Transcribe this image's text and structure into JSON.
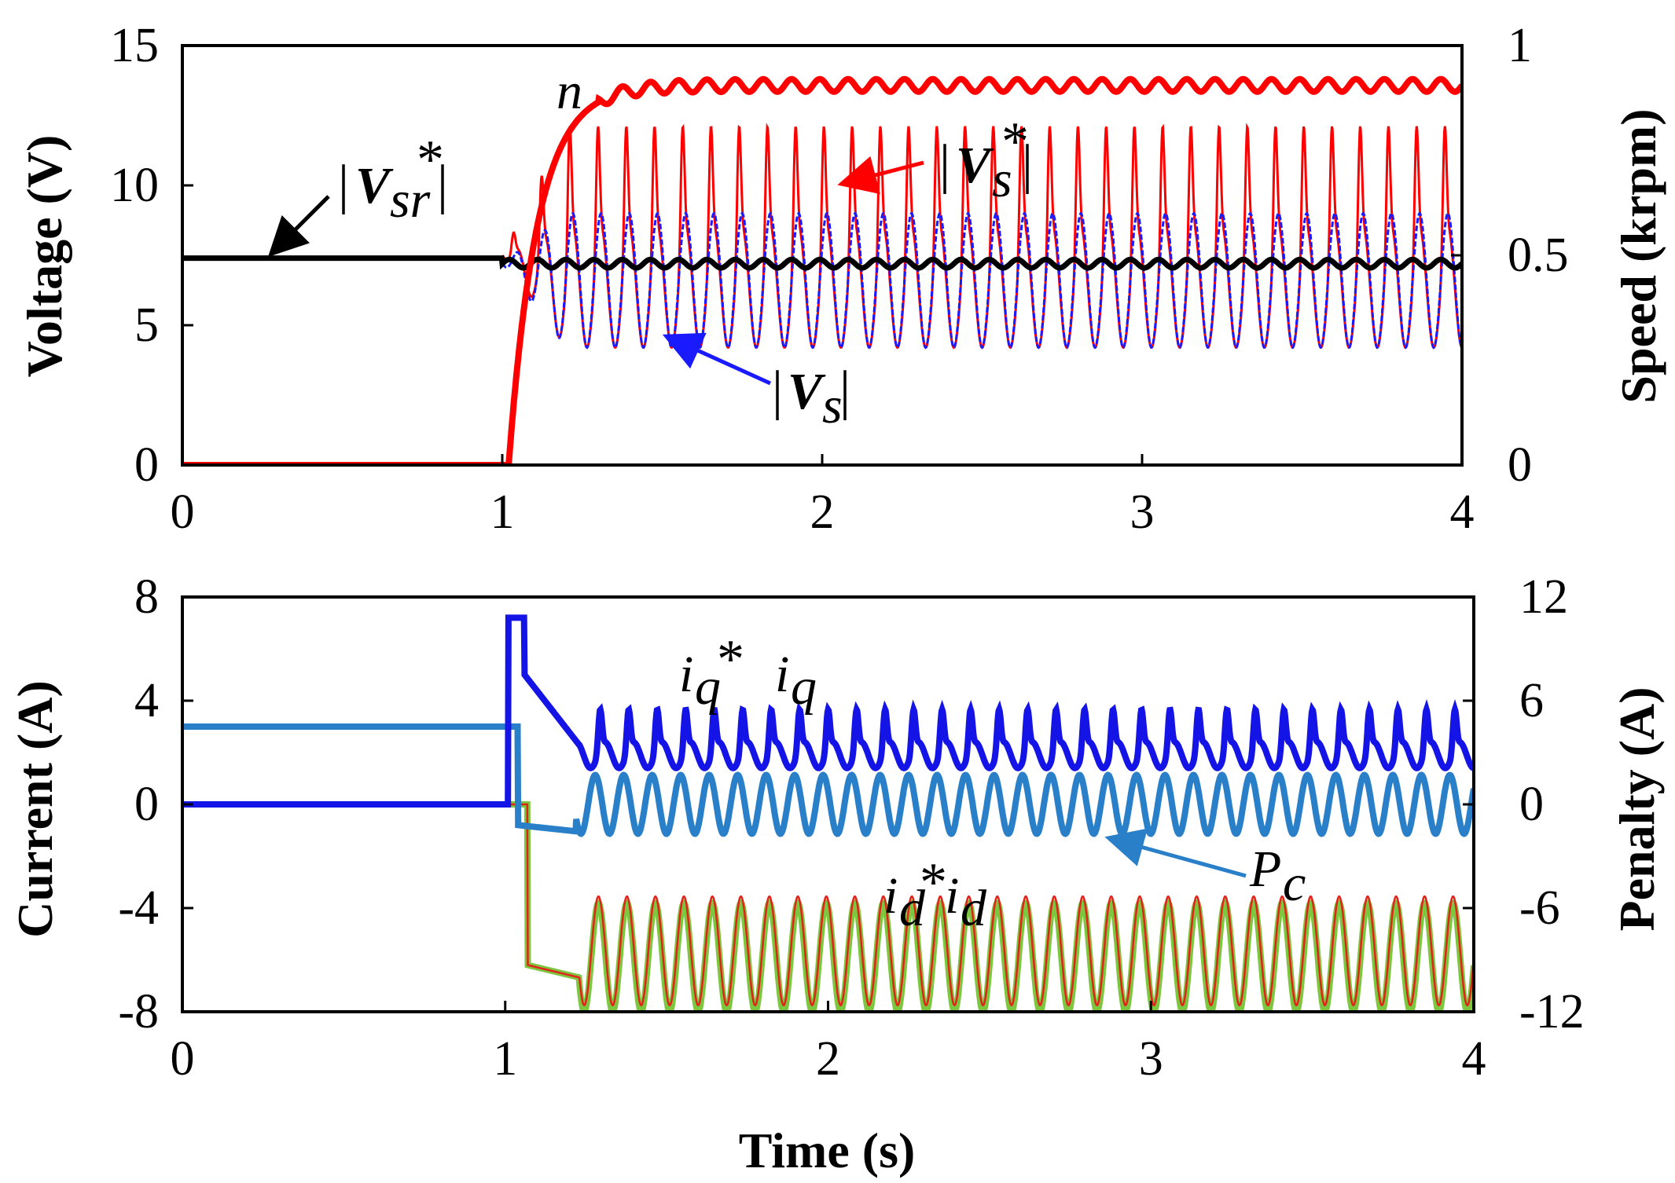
{
  "chart_data": [
    {
      "type": "line",
      "panel": "top",
      "xlabel": "",
      "ylabel": "Voltage (V)",
      "y2label": "Speed (krpm)",
      "xlim": [
        0,
        4
      ],
      "ylim": [
        0,
        15
      ],
      "y2lim": [
        0,
        1
      ],
      "xticks": [
        "0",
        "1",
        "2",
        "3",
        "4"
      ],
      "yticks": [
        "0",
        "5",
        "10",
        "15"
      ],
      "y2ticks": [
        "0",
        "0.5",
        "1"
      ],
      "grid": false,
      "series": [
        {
          "name": "|Vsr*|",
          "color": "#000000",
          "axis": "left",
          "description": "constant 7.4 V until 1 s, then about 7.2 V with small ripple",
          "before_step": 7.4,
          "after_step": 7.2,
          "ripple": 0.15
        },
        {
          "name": "|Vs*|",
          "color": "#ff0000",
          "axis": "left",
          "description": "oscillating reference voltage after start, peaks about 12.6 V, troughs about 4.2 V",
          "peak": 12.6,
          "trough": 4.2,
          "cycles": 34
        },
        {
          "name": "|Vs|",
          "color": "#1a1aff",
          "axis": "left",
          "description": "measured voltage tracking reference, peaks about 9 V, troughs about 4.2 V",
          "peak": 9.0,
          "trough": 4.2,
          "cycles": 34
        },
        {
          "name": "n",
          "color": "#ff0000",
          "axis": "right",
          "description": "speed 0 until 1 s, ramps to about 0.9 krpm by 1.5 s",
          "before_step": 0,
          "steady": 0.905,
          "ripple": 0.015
        }
      ],
      "annotations": [
        {
          "text": "n"
        },
        {
          "text": "|Vs*|"
        },
        {
          "text": "|Vsr*|"
        },
        {
          "text": "|Vs|"
        }
      ]
    },
    {
      "type": "line",
      "panel": "bottom",
      "xlabel": "Time (s)",
      "ylabel": "Current (A)",
      "y2label": "Penalty (A)",
      "xlim": [
        0,
        4
      ],
      "ylim": [
        -8,
        8
      ],
      "y2lim": [
        -12,
        12
      ],
      "xticks": [
        "0",
        "1",
        "2",
        "3",
        "4"
      ],
      "yticks": [
        "-8",
        "-4",
        "0",
        "4",
        "8"
      ],
      "y2ticks": [
        "-12",
        "-6",
        "0",
        "6",
        "12"
      ],
      "grid": false,
      "series": [
        {
          "name": "iq* / iq",
          "color": "#1414e6",
          "axis": "left",
          "description": "0 A until 1 s, jumps to about 7.2 A, then decays to oscillation between 1.4 A and 3.9 A",
          "before_step": 0,
          "jump": 7.2,
          "low": 1.4,
          "high": 3.9
        },
        {
          "name": "Pc",
          "color": "#2a7fc9",
          "axis": "right",
          "description": "penalty about 4.5 A until 1 s, then oscillates between about -1.7 A and 1.7 A",
          "before_step": 4.5,
          "low": -1.7,
          "high": 1.7
        },
        {
          "name": "id* / id",
          "color": "#7cc640",
          "axis": "left",
          "description": "0 A until 1 s, drops to about -6.5 A, then oscillates between -8 A and -3.8 A",
          "before_step": 0,
          "low": -8.0,
          "high": -3.8,
          "cycles": 34
        }
      ],
      "annotations": [
        {
          "text": "iq*  iq"
        },
        {
          "text": "Pc"
        },
        {
          "text": "id*id"
        }
      ]
    }
  ],
  "labels": {
    "top_ylabel": "Voltage (V)",
    "top_y2label": "Speed (krpm)",
    "bottom_ylabel": "Current (A)",
    "bottom_y2label": "Penalty (A)",
    "xlabel": "Time (s)",
    "ann_n": "n",
    "ann_vs_star_base": "V",
    "ann_vs_star_sub": "s",
    "ann_vsr_base": "V",
    "ann_vsr_sub": "sr",
    "ann_vs_base": "V",
    "ann_vs_sub": "s",
    "ann_iq_star": "i",
    "ann_iq_sub": "q",
    "ann_pc_base": "P",
    "ann_pc_sub": "c",
    "ann_id_base": "i",
    "ann_id_sub": "d",
    "bar": "|",
    "star": "*"
  }
}
